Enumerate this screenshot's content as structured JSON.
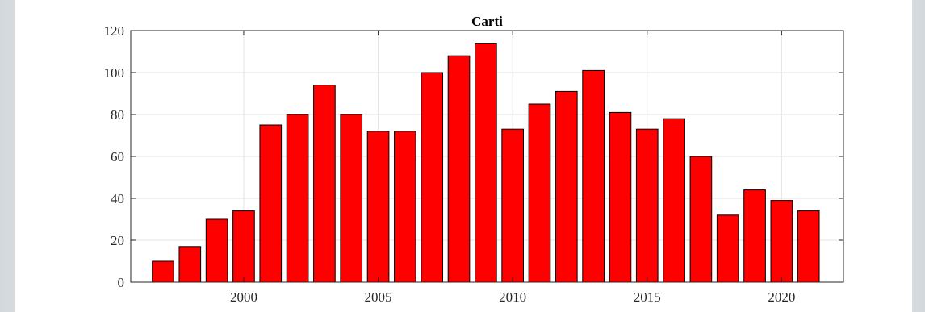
{
  "chart_data": {
    "type": "bar",
    "title": "Carti",
    "xlabel": "",
    "ylabel": "",
    "x": [
      1997,
      1998,
      1999,
      2000,
      2001,
      2002,
      2003,
      2004,
      2005,
      2006,
      2007,
      2008,
      2009,
      2010,
      2011,
      2012,
      2013,
      2014,
      2015,
      2016,
      2017,
      2018,
      2019,
      2020,
      2021
    ],
    "values": [
      10,
      17,
      30,
      34,
      75,
      80,
      94,
      80,
      72,
      72,
      100,
      108,
      114,
      73,
      85,
      91,
      101,
      81,
      73,
      78,
      60,
      32,
      44,
      39,
      34
    ],
    "xlim": [
      1995.8,
      2022.3
    ],
    "ylim": [
      0,
      120
    ],
    "xticks": [
      2000,
      2005,
      2010,
      2015,
      2020
    ],
    "yticks": [
      0,
      20,
      40,
      60,
      80,
      100,
      120
    ],
    "grid": true,
    "bar_color": "#ff0000",
    "edge_color": "#000000"
  }
}
